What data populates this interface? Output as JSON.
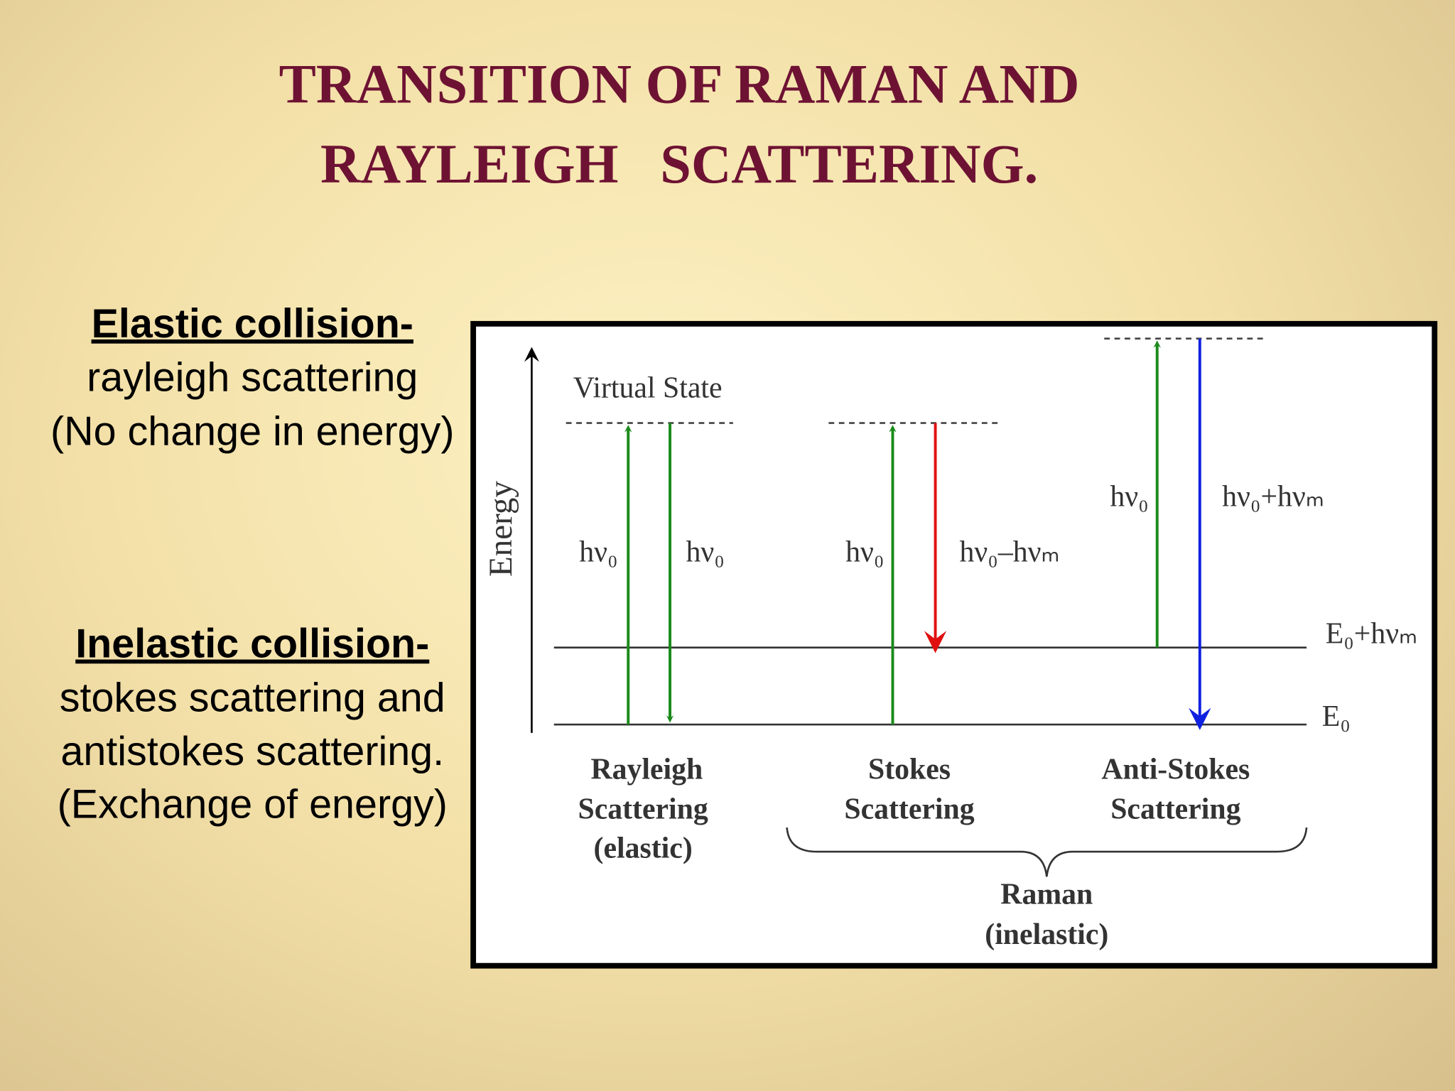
{
  "title": {
    "lines": [
      "TRANSITION OF RAMAN AND",
      "RAYLEIGH   SCATTERING."
    ]
  },
  "left_text": {
    "elastic": {
      "heading": "Elastic collision-",
      "lines": [
        "rayleigh scattering",
        "(No change in energy)"
      ]
    },
    "inelastic": {
      "heading": "Inelastic collision-",
      "lines": [
        "stokes scattering and",
        "antistokes scattering.",
        "(Exchange of energy)"
      ]
    }
  },
  "diagram": {
    "axis_label": "Energy",
    "virtual_state": "Virtual State",
    "levels": [
      "E₀+hνₘ",
      "E₀"
    ],
    "transitions": [
      "hν₀",
      "hν₀",
      "hν₀",
      "hν₀–hνₘ",
      "hν₀",
      "hν₀+hνₘ"
    ],
    "groups": [
      {
        "lines": [
          "Rayleigh",
          "Scattering",
          "(elastic)"
        ]
      },
      {
        "lines": [
          "Stokes",
          "Scattering"
        ]
      },
      {
        "lines": [
          "Anti-Stokes",
          "Scattering"
        ]
      }
    ],
    "raman": {
      "lines": [
        "Raman",
        "(inelastic)"
      ]
    }
  }
}
